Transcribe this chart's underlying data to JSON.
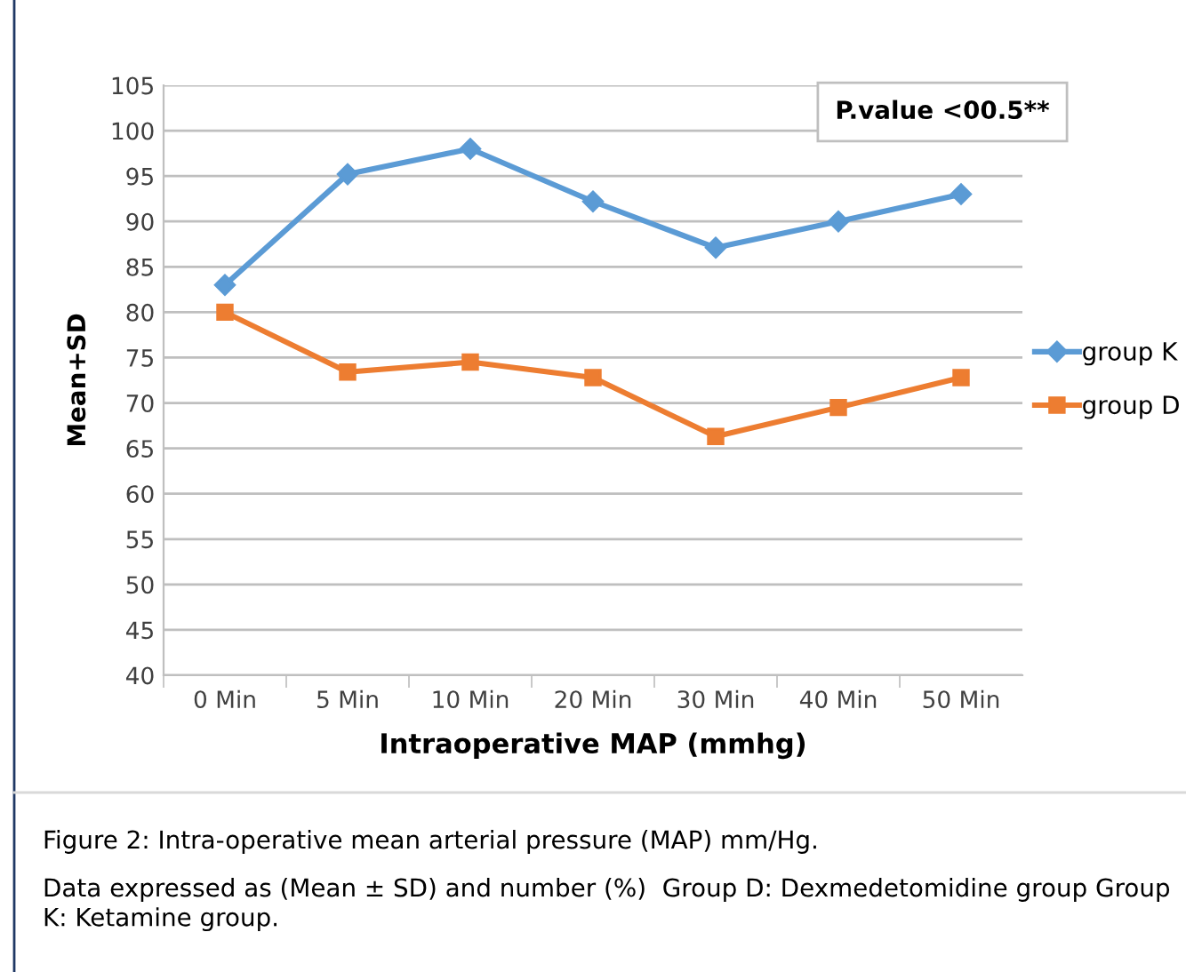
{
  "chart_data": {
    "type": "line",
    "xlabel": "Intraoperative MAP (mmhg)",
    "ylabel": "Mean+SD",
    "categories": [
      "0 Min",
      "5 Min",
      "10 Min",
      "20 Min",
      "30 Min",
      "40 Min",
      "50 Min"
    ],
    "series": [
      {
        "name": "group K",
        "color": "#5b9bd5",
        "marker": "diamond",
        "values": [
          83,
          95.2,
          98,
          92.2,
          87.1,
          90,
          93
        ]
      },
      {
        "name": "group D",
        "color": "#ed7d31",
        "marker": "square",
        "values": [
          80,
          73.4,
          74.5,
          72.8,
          66.3,
          69.5,
          72.8
        ]
      }
    ],
    "ylim": [
      40,
      105
    ],
    "yticks": [
      40,
      45,
      50,
      55,
      60,
      65,
      70,
      75,
      80,
      85,
      90,
      95,
      100,
      105
    ],
    "grid": "y",
    "legend": "right",
    "line_style": "solid",
    "annotations": [
      "P.value <00.5**",
      "Figure 2: Intra-operative mean arterial pressure (MAP) mm/Hg.",
      "Data expressed as (Mean ± SD) and number (%)  Group D: Dexmedetomidine group Group K: Ketamine group."
    ]
  }
}
